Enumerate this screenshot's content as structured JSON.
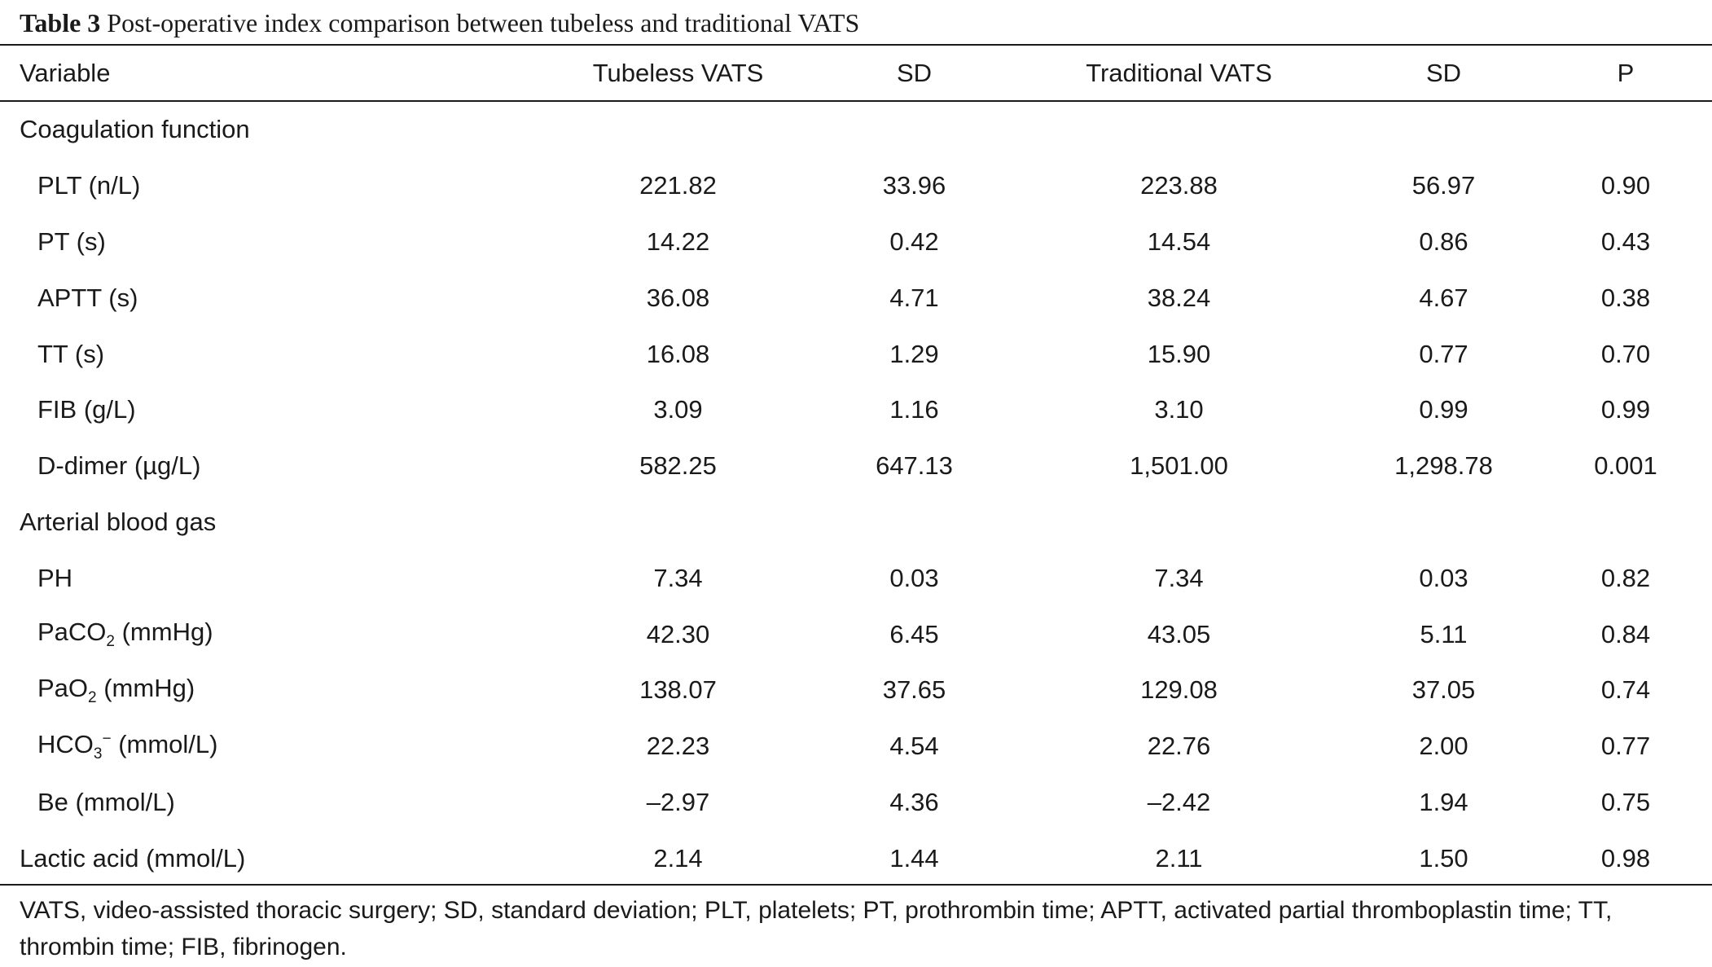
{
  "caption": {
    "label": "Table 3",
    "text": "Post-operative index comparison between tubeless and traditional VATS"
  },
  "columns": [
    "Variable",
    "Tubeless VATS",
    "SD",
    "Traditional VATS",
    "SD",
    "P"
  ],
  "rows": [
    {
      "type": "group",
      "label": "Coagulation function"
    },
    {
      "type": "item",
      "label": "PLT (n/L)",
      "values": [
        "221.82",
        "33.96",
        "223.88",
        "56.97",
        "0.90"
      ]
    },
    {
      "type": "item",
      "label": "PT (s)",
      "values": [
        "14.22",
        "0.42",
        "14.54",
        "0.86",
        "0.43"
      ]
    },
    {
      "type": "item",
      "label": "APTT (s)",
      "values": [
        "36.08",
        "4.71",
        "38.24",
        "4.67",
        "0.38"
      ]
    },
    {
      "type": "item",
      "label": "TT (s)",
      "values": [
        "16.08",
        "1.29",
        "15.90",
        "0.77",
        "0.70"
      ]
    },
    {
      "type": "item",
      "label": "FIB (g/L)",
      "values": [
        "3.09",
        "1.16",
        "3.10",
        "0.99",
        "0.99"
      ]
    },
    {
      "type": "item",
      "label": "D-dimer (µg/L)",
      "values": [
        "582.25",
        "647.13",
        "1,501.00",
        "1,298.78",
        "0.001"
      ]
    },
    {
      "type": "group",
      "label": "Arterial blood gas"
    },
    {
      "type": "item",
      "label": "PH",
      "values": [
        "7.34",
        "0.03",
        "7.34",
        "0.03",
        "0.82"
      ]
    },
    {
      "type": "item",
      "label_parts": {
        "pre": "PaCO",
        "sub": "2",
        "sup": "",
        "post": " (mmHg)"
      },
      "values": [
        "42.30",
        "6.45",
        "43.05",
        "5.11",
        "0.84"
      ]
    },
    {
      "type": "item",
      "label_parts": {
        "pre": "PaO",
        "sub": "2",
        "sup": "",
        "post": " (mmHg)"
      },
      "values": [
        "138.07",
        "37.65",
        "129.08",
        "37.05",
        "0.74"
      ]
    },
    {
      "type": "item",
      "label_parts": {
        "pre": "HCO",
        "sub": "3",
        "sup": "−",
        "post": " (mmol/L)"
      },
      "values": [
        "22.23",
        "4.54",
        "22.76",
        "2.00",
        "0.77"
      ]
    },
    {
      "type": "item",
      "label": "Be (mmol/L)",
      "values": [
        "–2.97",
        "4.36",
        "–2.42",
        "1.94",
        "0.75"
      ]
    },
    {
      "type": "top",
      "label": "Lactic acid (mmol/L)",
      "values": [
        "2.14",
        "1.44",
        "2.11",
        "1.50",
        "0.98"
      ]
    }
  ],
  "footnote": "VATS, video-assisted thoracic surgery; SD, standard deviation; PLT, platelets; PT, prothrombin time; APTT, activated partial thromboplastin time; TT, thrombin time; FIB, fibrinogen."
}
